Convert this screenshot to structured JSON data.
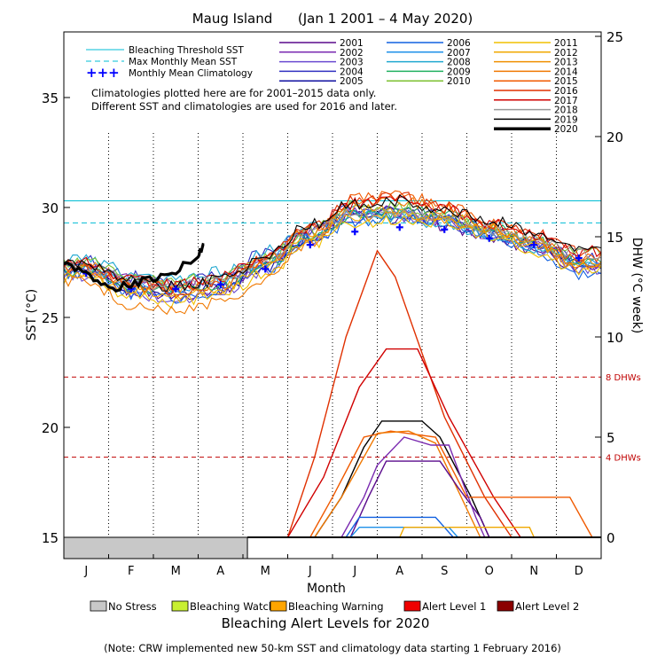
{
  "chart_data": {
    "type": "line",
    "title": "Maug Island      (Jan 1 2001 – 4 May 2020)",
    "xlabel": "Month",
    "ylabel_left": "SST (°C)",
    "ylabel_right": "DHW (°C week)",
    "months": [
      "J",
      "F",
      "M",
      "A",
      "M",
      "J",
      "J",
      "A",
      "S",
      "O",
      "N",
      "D"
    ],
    "left_axis": {
      "ylim": [
        15,
        39
      ],
      "ticks": [
        "15",
        "20",
        "25",
        "30",
        "35"
      ]
    },
    "right_axis": {
      "ylim": [
        0,
        25
      ],
      "ticks": [
        "0",
        "5",
        "10",
        "15",
        "20",
        "25"
      ]
    },
    "bleaching_threshold_sst": 30.3,
    "max_monthly_mean_sst": 29.3,
    "dhw_reference_lines": [
      {
        "value": 4,
        "label": "4 DHWs"
      },
      {
        "value": 8,
        "label": "8 DHWs"
      }
    ],
    "monthly_mean_climatology": [
      27.0,
      26.3,
      26.3,
      26.5,
      27.2,
      28.3,
      28.9,
      29.1,
      29.0,
      28.6,
      28.3,
      27.7
    ],
    "sst_series": [
      {
        "name": "2001",
        "color": "#5a0a8c",
        "values": [
          27.1,
          26.2,
          26.0,
          26.3,
          27.4,
          28.7,
          29.6,
          29.5,
          29.2,
          28.6,
          28.1,
          27.3
        ]
      },
      {
        "name": "2002",
        "color": "#7a2ab0",
        "values": [
          27.4,
          26.7,
          26.5,
          26.7,
          27.6,
          28.8,
          29.9,
          29.8,
          29.4,
          28.8,
          28.3,
          27.5
        ]
      },
      {
        "name": "2003",
        "color": "#6a4ad0",
        "values": [
          26.9,
          26.0,
          25.8,
          26.1,
          27.1,
          28.4,
          29.5,
          29.6,
          29.5,
          28.9,
          28.2,
          27.1
        ]
      },
      {
        "name": "2004",
        "color": "#3030c0",
        "values": [
          27.6,
          26.9,
          26.6,
          27.0,
          27.9,
          29.0,
          30.0,
          29.7,
          29.3,
          28.7,
          28.4,
          27.7
        ]
      },
      {
        "name": "2005",
        "color": "#1010a0",
        "values": [
          27.2,
          26.3,
          26.1,
          26.4,
          27.3,
          28.6,
          29.7,
          29.9,
          29.6,
          29.0,
          28.4,
          27.4
        ]
      },
      {
        "name": "2006",
        "color": "#1060e0",
        "values": [
          27.0,
          26.1,
          25.9,
          26.2,
          27.2,
          28.5,
          29.4,
          29.5,
          29.4,
          28.7,
          28.0,
          27.0
        ]
      },
      {
        "name": "2007",
        "color": "#1e90e8",
        "values": [
          27.3,
          26.5,
          26.3,
          26.6,
          27.5,
          28.7,
          29.8,
          29.7,
          29.5,
          28.9,
          28.3,
          27.5
        ]
      },
      {
        "name": "2008",
        "color": "#20a8d0",
        "values": [
          27.7,
          27.0,
          26.8,
          27.1,
          28.0,
          29.1,
          29.9,
          29.6,
          29.2,
          28.6,
          28.2,
          27.6
        ]
      },
      {
        "name": "2009",
        "color": "#20b060",
        "values": [
          27.1,
          26.3,
          26.2,
          26.5,
          27.4,
          28.7,
          29.7,
          29.8,
          29.7,
          29.1,
          28.5,
          27.6
        ]
      },
      {
        "name": "2010",
        "color": "#7cc030",
        "values": [
          27.5,
          26.8,
          26.6,
          26.9,
          27.7,
          28.9,
          30.1,
          30.0,
          29.6,
          29.0,
          28.6,
          27.9
        ]
      },
      {
        "name": "2011",
        "color": "#f0c000",
        "values": [
          26.8,
          25.9,
          25.7,
          26.0,
          27.0,
          28.3,
          29.3,
          29.4,
          29.3,
          28.7,
          28.0,
          27.1
        ]
      },
      {
        "name": "2012",
        "color": "#f0a800",
        "values": [
          27.0,
          26.2,
          26.0,
          26.3,
          27.3,
          28.6,
          29.6,
          29.7,
          29.6,
          29.0,
          28.3,
          27.3
        ]
      },
      {
        "name": "2013",
        "color": "#f09000",
        "values": [
          27.3,
          26.5,
          26.4,
          26.7,
          27.6,
          28.9,
          29.9,
          29.8,
          29.5,
          28.9,
          28.4,
          27.5
        ]
      },
      {
        "name": "2014",
        "color": "#f07800",
        "values": [
          26.6,
          25.6,
          25.3,
          25.7,
          26.8,
          28.4,
          30.2,
          30.3,
          29.9,
          29.1,
          28.4,
          27.3
        ]
      },
      {
        "name": "2015",
        "color": "#f05a00",
        "values": [
          27.2,
          26.4,
          26.1,
          26.5,
          27.6,
          29.0,
          30.4,
          30.6,
          30.1,
          29.3,
          28.6,
          27.7
        ]
      },
      {
        "name": "2016",
        "color": "#e03000",
        "values": [
          27.4,
          26.6,
          26.3,
          26.7,
          27.7,
          29.1,
          30.3,
          30.5,
          30.0,
          29.3,
          28.8,
          28.0
        ]
      },
      {
        "name": "2017",
        "color": "#d00000",
        "values": [
          27.5,
          26.8,
          26.5,
          26.8,
          27.8,
          29.1,
          30.2,
          30.4,
          29.9,
          29.3,
          28.8,
          28.0
        ]
      },
      {
        "name": "2018",
        "color": "#999999",
        "values": [
          27.3,
          26.6,
          26.4,
          26.7,
          27.7,
          28.9,
          29.8,
          29.7,
          29.5,
          29.0,
          28.6,
          27.9
        ]
      },
      {
        "name": "2019",
        "color": "#000000",
        "values": [
          27.4,
          26.7,
          26.4,
          26.7,
          27.8,
          29.2,
          30.2,
          30.3,
          29.9,
          29.4,
          28.9,
          28.1
        ]
      }
    ],
    "sst_2020": {
      "name": "2020",
      "color": "#000000",
      "x": [
        0.0,
        0.5,
        1.0,
        1.5,
        2.0,
        2.5,
        3.0,
        3.13
      ],
      "values": [
        27.4,
        27.0,
        26.3,
        26.5,
        26.8,
        27.1,
        27.8,
        28.3
      ]
    },
    "dhw_series": [
      {
        "name": "2016",
        "x": [
          5.0,
          5.6,
          6.3,
          7.0,
          7.4,
          8.5,
          9.4,
          10.0
        ],
        "values": [
          0,
          4,
          10,
          14.3,
          13,
          6,
          2,
          0
        ],
        "color": "#e03000"
      },
      {
        "name": "2017",
        "x": [
          5.0,
          5.8,
          6.6,
          7.2,
          7.9,
          8.6,
          9.6,
          10.2
        ],
        "values": [
          0,
          3,
          7.5,
          9.4,
          9.4,
          6,
          2,
          0
        ],
        "color": "#d00000"
      },
      {
        "name": "2019",
        "x": [
          5.6,
          6.2,
          6.7,
          7.1,
          8.0,
          8.4,
          9.1,
          9.5
        ],
        "values": [
          0,
          2,
          4.5,
          5.8,
          5.8,
          5.0,
          2,
          0
        ],
        "color": "#000000"
      },
      {
        "name": "2015",
        "x": [
          5.5,
          6.0,
          6.7,
          7.3,
          8.3,
          9.0,
          9.8,
          10.5,
          11.3,
          11.8
        ],
        "values": [
          0,
          2,
          5,
          5.3,
          5.0,
          2,
          2,
          2,
          2,
          0
        ],
        "color": "#f05a00"
      },
      {
        "name": "2014",
        "x": [
          5.6,
          6.2,
          7.0,
          7.7,
          8.3,
          9.3
        ],
        "values": [
          0,
          2,
          5.2,
          5.3,
          4.7,
          0
        ],
        "color": "#f07800"
      },
      {
        "name": "2002",
        "x": [
          6.2,
          6.7,
          7.0,
          7.6,
          8.2,
          8.6,
          9.2,
          9.4
        ],
        "values": [
          0,
          2,
          3.6,
          5,
          4.6,
          4.6,
          1,
          0
        ],
        "color": "#7a2ab0"
      },
      {
        "name": "2001",
        "x": [
          6.4,
          6.8,
          7.2,
          8.4,
          8.8,
          9.3,
          9.5
        ],
        "values": [
          0,
          2,
          3.8,
          3.8,
          2.5,
          1,
          0
        ],
        "color": "#5a0a8c"
      },
      {
        "name": "2006",
        "x": [
          6.3,
          6.6,
          8.3,
          8.7
        ],
        "values": [
          0,
          1,
          1,
          0
        ],
        "color": "#1060e0"
      },
      {
        "name": "2007",
        "x": [
          6.4,
          6.6,
          8.6,
          8.8
        ],
        "values": [
          0,
          0.5,
          0.5,
          0
        ],
        "color": "#1e90e8"
      },
      {
        "name": "2012",
        "x": [
          7.5,
          7.6,
          10.4,
          10.5
        ],
        "values": [
          0,
          0.5,
          0.5,
          0
        ],
        "color": "#f0a800"
      }
    ]
  },
  "legend": {
    "threshold_label": "Bleaching Threshold SST",
    "mmm_label": "Max Monthly Mean SST",
    "climatology_label": "Monthly Mean Climatology",
    "note_line1": "Climatologies plotted here are for 2001–2015 data only.",
    "note_line2": "Different SST and climatologies are used for 2016 and later.",
    "year_entries": [
      {
        "name": "2001",
        "color": "#5a0a8c",
        "w": 1.5
      },
      {
        "name": "2002",
        "color": "#7a2ab0",
        "w": 1.5
      },
      {
        "name": "2003",
        "color": "#6a4ad0",
        "w": 1.5
      },
      {
        "name": "2004",
        "color": "#3030c0",
        "w": 1.5
      },
      {
        "name": "2005",
        "color": "#1010a0",
        "w": 1.5
      },
      {
        "name": "2006",
        "color": "#1060e0",
        "w": 1.5
      },
      {
        "name": "2007",
        "color": "#1e90e8",
        "w": 1.5
      },
      {
        "name": "2008",
        "color": "#20a8d0",
        "w": 1.5
      },
      {
        "name": "2009",
        "color": "#20b060",
        "w": 1.5
      },
      {
        "name": "2010",
        "color": "#7cc030",
        "w": 1.5
      },
      {
        "name": "2011",
        "color": "#f0c000",
        "w": 1.5
      },
      {
        "name": "2012",
        "color": "#f0a800",
        "w": 1.5
      },
      {
        "name": "2013",
        "color": "#f09000",
        "w": 1.5
      },
      {
        "name": "2014",
        "color": "#f07800",
        "w": 1.5
      },
      {
        "name": "2015",
        "color": "#f05a00",
        "w": 1.5
      },
      {
        "name": "2016",
        "color": "#e03000",
        "w": 1.5
      },
      {
        "name": "2017",
        "color": "#d00000",
        "w": 1.5
      },
      {
        "name": "2018",
        "color": "#999999",
        "w": 1.5
      },
      {
        "name": "2019",
        "color": "#000000",
        "w": 1.5
      },
      {
        "name": "2020",
        "color": "#000000",
        "w": 3.5
      }
    ]
  },
  "alert_bar": {
    "levels": [
      "No Stress",
      "Bleaching Watch",
      "Bleaching Warning",
      "Alert Level 1",
      "Alert Level 2"
    ],
    "level_colors": [
      "#c8c8c8",
      "#c8f032",
      "#ffa500",
      "#f00000",
      "#8b0000"
    ],
    "title": "Bleaching Alert Levels for 2020",
    "segments_2020": [
      {
        "level": "No Stress",
        "start_month": 0.0,
        "end_month": 4.1
      }
    ]
  },
  "footer_note": "(Note: CRW implemented new 50-km SST and climatology data starting 1 February 2016)"
}
